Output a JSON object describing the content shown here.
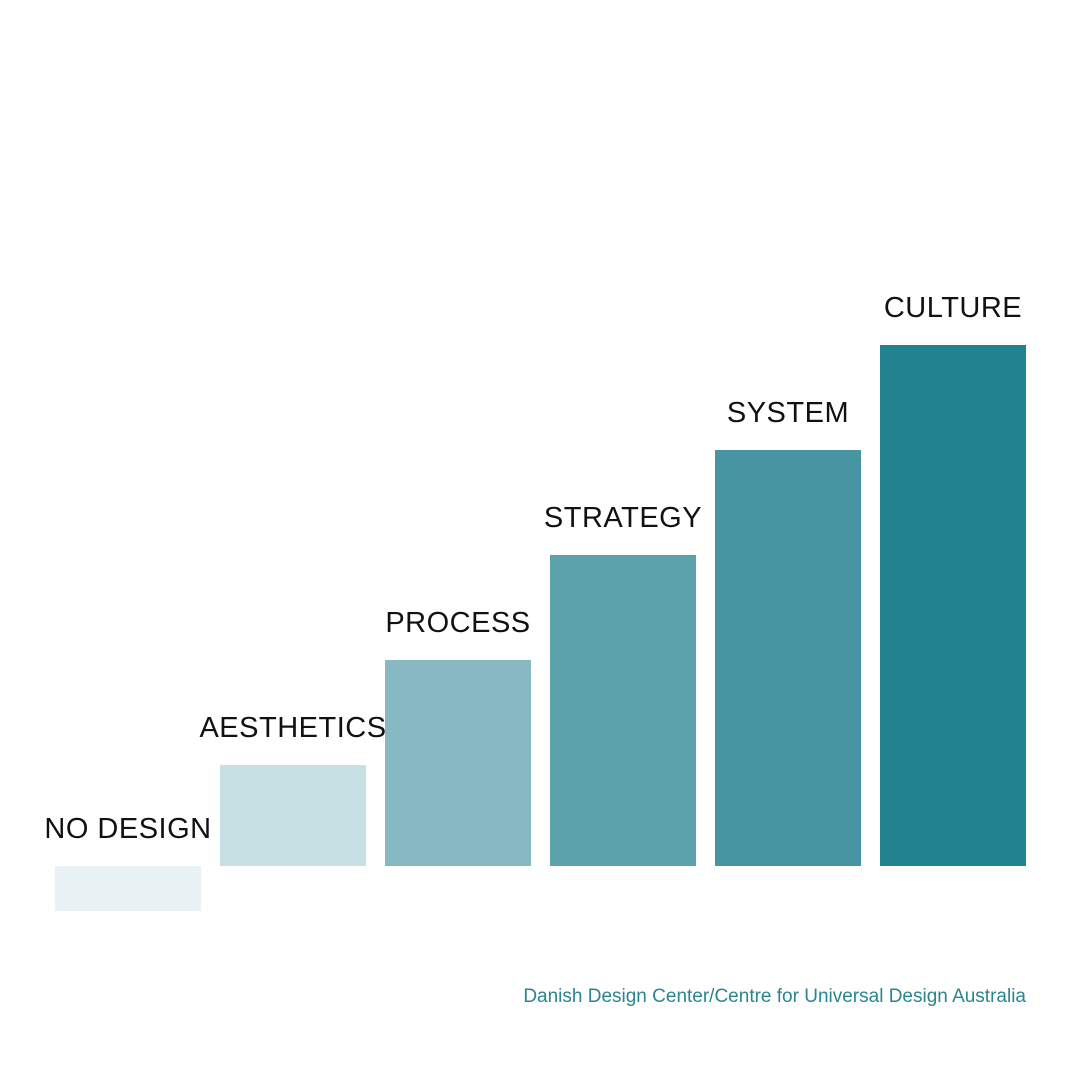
{
  "chart_data": {
    "type": "bar",
    "categories": [
      "NO DESIGN",
      "AESTHETICS",
      "PROCESS",
      "STRATEGY",
      "SYSTEM",
      "CULTURE"
    ],
    "values": [
      1,
      2,
      3,
      4,
      5,
      6
    ],
    "colors": [
      "#e8f2f4",
      "#c7e0e3",
      "#88b9c2",
      "#5ca2ad",
      "#4795a2",
      "#238290"
    ],
    "title": "",
    "xlabel": "",
    "ylabel": "",
    "grid": false,
    "axes_visible": false,
    "legend": "none",
    "layout": "staircase"
  },
  "credit": "Danish Design Center/Centre for Universal Design Australia"
}
